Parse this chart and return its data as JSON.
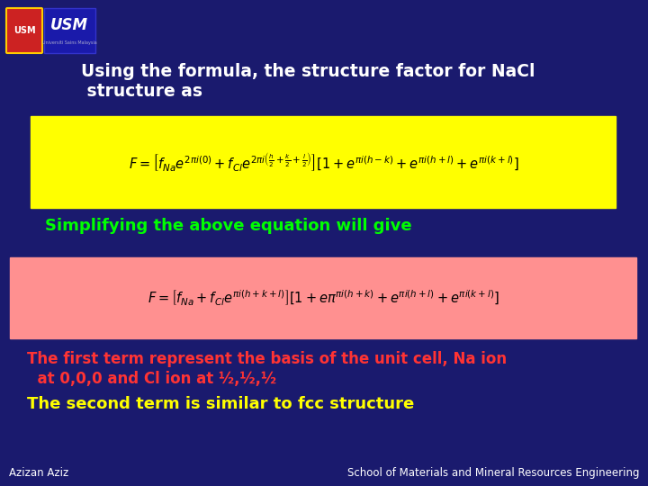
{
  "bg_color": "#1a1a6e",
  "title_text1": "Using the formula, the structure factor for NaCl",
  "title_text2": " structure as",
  "title_color": "#ffffff",
  "title_fontsize": 13.5,
  "eq1_box_color": "#ffff00",
  "simplify_text": "Simplifying the above equation will give",
  "simplify_color": "#00ff00",
  "simplify_fontsize": 13,
  "eq2_box_color": "#ff9090",
  "para1_text1": "The first term represent the basis of the unit cell, Na ion",
  "para1_text2": "  at 0,0,0 and Cl ion at ½,½,½",
  "para1_color": "#ff3333",
  "para1_fontsize": 12,
  "para2_text": "The second term is similar to fcc structure",
  "para2_color": "#ffff00",
  "para2_fontsize": 13,
  "footer_left": "Azizan Aziz",
  "footer_right": "School of Materials and Mineral Resources Engineering",
  "footer_color": "#ffffff",
  "footer_fontsize": 8.5
}
